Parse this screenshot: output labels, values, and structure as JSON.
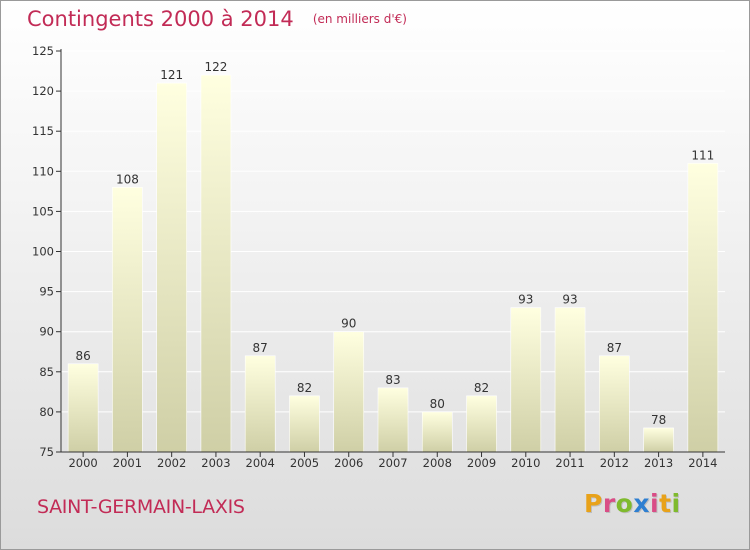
{
  "header": {
    "title": "Contingents 2000 à 2014",
    "unit": "(en milliers d'€)"
  },
  "footer": {
    "commune": "SAINT-GERMAIN-LAXIS",
    "brand": "Proxiti"
  },
  "colors": {
    "title": "#c22b56",
    "bar_top": "#ffffe0",
    "bar_bottom": "#cfcfa6",
    "axis": "#333333",
    "grid": "#ffffff",
    "brand": [
      "#e8a21a",
      "#d94d86",
      "#7fba2d",
      "#2e7fd1",
      "#d94d86",
      "#e8a21a",
      "#7fba2d"
    ]
  },
  "chart_data": {
    "type": "bar",
    "title": "Contingents 2000 à 2014",
    "subtitle": "(en milliers d'€)",
    "categories": [
      "2000",
      "2001",
      "2002",
      "2003",
      "2004",
      "2005",
      "2006",
      "2007",
      "2008",
      "2009",
      "2010",
      "2011",
      "2012",
      "2013",
      "2014"
    ],
    "values": [
      86,
      108,
      121,
      122,
      87,
      82,
      90,
      83,
      80,
      82,
      93,
      93,
      87,
      78,
      111
    ],
    "ylim": [
      75,
      125
    ],
    "yticks": [
      75,
      80,
      85,
      90,
      95,
      100,
      105,
      110,
      115,
      120,
      125
    ],
    "grid": true,
    "xlabel": "",
    "ylabel": ""
  }
}
